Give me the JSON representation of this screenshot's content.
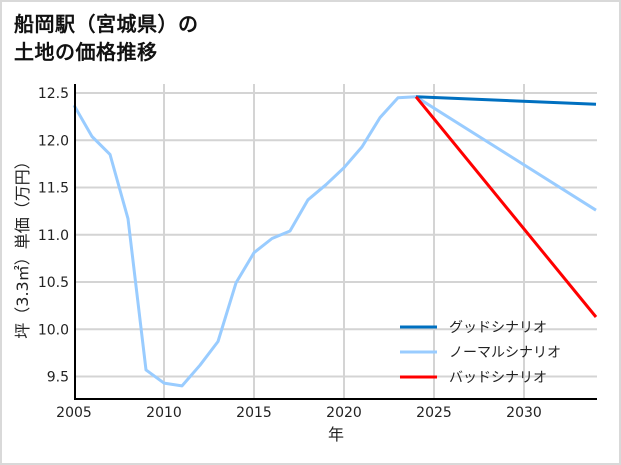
{
  "title": {
    "line1": "船岡駅（宮城県）の",
    "line2": "土地の価格推移"
  },
  "colors": {
    "good": "#0070c0",
    "normal": "#99ccff",
    "bad": "#ff0000",
    "grid": "#d4d4d4",
    "axis": "#000000",
    "border": "#d9d9d9"
  },
  "chart_data": {
    "type": "line",
    "title": "船岡駅（宮城県）の土地の価格推移",
    "xlabel": "年",
    "ylabel": "坪（3.3㎡）単価（万円）",
    "xlim": [
      2005,
      2034
    ],
    "ylim": [
      9.25,
      12.6
    ],
    "x_ticks": [
      2005,
      2010,
      2015,
      2020,
      2025,
      2030
    ],
    "x_tick_labels": [
      "2005",
      "2010",
      "2015",
      "2020",
      "2025",
      "2030"
    ],
    "y_ticks": [
      9.5,
      10.0,
      10.5,
      11.0,
      11.5,
      12.0,
      12.5
    ],
    "y_tick_labels": [
      "9.5",
      "10.0",
      "10.5",
      "11.0",
      "11.5",
      "12.0",
      "12.5"
    ],
    "grid": true,
    "legend_position": "lower right",
    "series": [
      {
        "name": "グッドシナリオ",
        "key": "good",
        "x": [
          2024,
          2034
        ],
        "values": [
          12.46,
          12.38
        ]
      },
      {
        "name": "ノーマルシナリオ",
        "key": "normal",
        "x": [
          2005,
          2006,
          2007,
          2008,
          2009,
          2010,
          2011,
          2012,
          2013,
          2014,
          2015,
          2016,
          2017,
          2018,
          2019,
          2020,
          2021,
          2022,
          2023,
          2024,
          2034
        ],
        "values": [
          12.37,
          12.04,
          11.85,
          11.17,
          9.57,
          9.43,
          9.4,
          9.62,
          9.87,
          10.49,
          10.81,
          10.96,
          11.04,
          11.37,
          11.53,
          11.71,
          11.93,
          12.24,
          12.45,
          12.46,
          11.26
        ]
      },
      {
        "name": "バッドシナリオ",
        "key": "bad",
        "x": [
          2024,
          2034
        ],
        "values": [
          12.46,
          10.13
        ]
      }
    ]
  }
}
